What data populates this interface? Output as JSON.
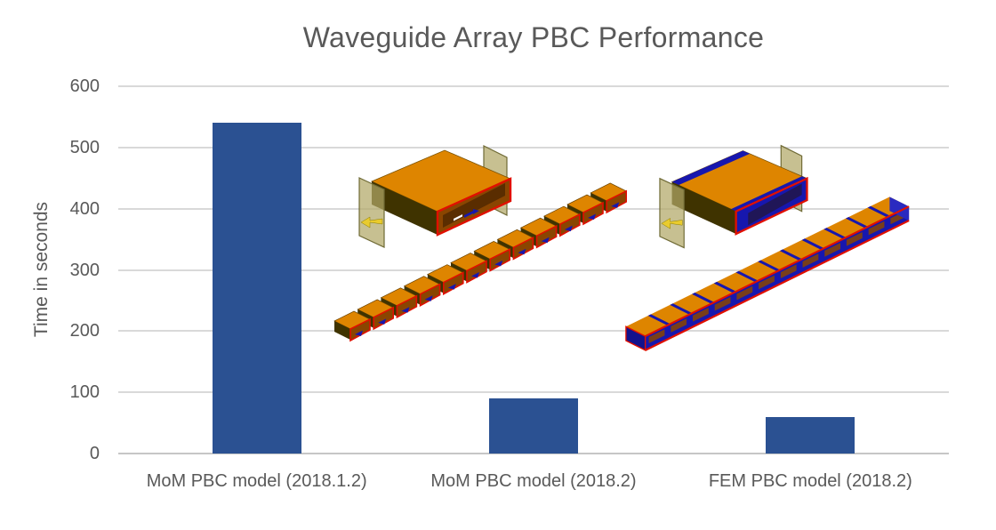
{
  "chart_data": {
    "type": "bar",
    "title": "Waveguide Array PBC Performance",
    "categories": [
      "MoM PBC model (2018.1.2)",
      "MoM PBC model (2018.2)",
      "FEM PBC model (2018.2)"
    ],
    "values": [
      540,
      90,
      60
    ],
    "xlabel": "",
    "ylabel": "Time in seconds",
    "ylim": [
      0,
      600
    ],
    "yticks": [
      0,
      100,
      200,
      300,
      400,
      500,
      600
    ],
    "grid": true,
    "legend": "none",
    "bar_color": "#2B5192"
  },
  "illustrations": {
    "mom_unit_cell": {
      "name": "mom-pbc-unit-cell-3d-render",
      "description": "single waveguide cell with PBC plates, red mesh edges"
    },
    "mom_array": {
      "name": "mom-pbc-array-3d-render",
      "cells": 12,
      "description": "12-element waveguide array, open red-framed apertures with blue excitation arrows"
    },
    "fem_unit_cell": {
      "name": "fem-pbc-unit-cell-3d-render",
      "description": "single waveguide cell with PBC plates, blue FEM region stripes"
    },
    "fem_array": {
      "name": "fem-pbc-array-3d-render",
      "cells": 12,
      "description": "12-element solid waveguide array with blue FEM dividers and red edges"
    },
    "colors": {
      "copper": "#DE8500",
      "copper_dark": "#8A4500",
      "shadow": "#3F3300",
      "edge_red": "#E01000",
      "fem_blue": "#1717AE",
      "plate": "#B1A866",
      "plate_edge": "#6F6A35",
      "arrow_yellow": "#E9CB2E"
    },
    "text_color": "#595959",
    "gridline_color": "#D9D9D9"
  }
}
